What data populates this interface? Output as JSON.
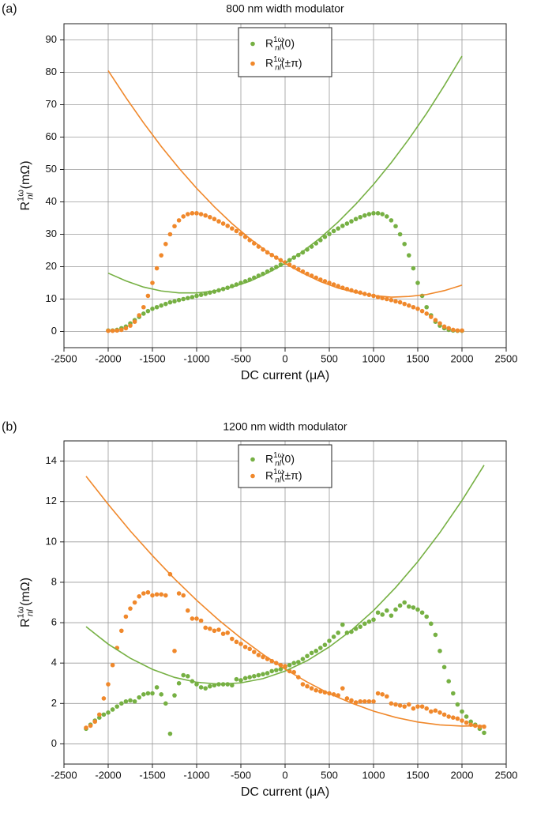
{
  "chart_data": [
    {
      "type": "scatter",
      "panel_label": "(a)",
      "title": "800 nm width modulator",
      "x_label": "DC current (μA)",
      "y_label": "R^{1ω}_{nl}  (mΩ)",
      "xlim": [
        -2500,
        2500
      ],
      "xticks": [
        -2500,
        -2000,
        -1500,
        -1000,
        -500,
        0,
        500,
        1000,
        1500,
        2000,
        2500
      ],
      "ylim": [
        -5,
        95
      ],
      "yticks": [
        0,
        10,
        20,
        30,
        40,
        50,
        60,
        70,
        80,
        90
      ],
      "grid": true,
      "legend": "upper center",
      "series": [
        {
          "name": "R^{1ω}_{nl}(0)",
          "color": "#76b043",
          "style": "scatter",
          "x": [
            -2000,
            -1950,
            -1900,
            -1850,
            -1800,
            -1750,
            -1700,
            -1650,
            -1600,
            -1550,
            -1500,
            -1450,
            -1400,
            -1350,
            -1300,
            -1250,
            -1200,
            -1150,
            -1100,
            -1050,
            -1000,
            -950,
            -900,
            -850,
            -800,
            -750,
            -700,
            -650,
            -600,
            -550,
            -500,
            -450,
            -400,
            -350,
            -300,
            -250,
            -200,
            -150,
            -100,
            -50,
            0,
            50,
            100,
            150,
            200,
            250,
            300,
            350,
            400,
            450,
            500,
            550,
            600,
            650,
            700,
            750,
            800,
            850,
            900,
            950,
            1000,
            1050,
            1100,
            1150,
            1200,
            1250,
            1300,
            1350,
            1400,
            1450,
            1500,
            1550,
            1600,
            1650,
            1700,
            1750,
            1800,
            1850,
            1900,
            1950,
            2000
          ],
          "values": [
            0.3,
            0.3,
            0.5,
            1,
            1.5,
            2.5,
            3.5,
            4.5,
            5.5,
            6.3,
            7,
            7.5,
            8,
            8.5,
            9,
            9.3,
            9.7,
            10,
            10.3,
            10.6,
            11,
            11.3,
            11.6,
            12,
            12.3,
            12.7,
            13.1,
            13.5,
            14,
            14.5,
            15,
            15.5,
            16,
            16.6,
            17.2,
            17.8,
            18.5,
            19.2,
            19.9,
            20.6,
            21.3,
            22,
            22.8,
            23.6,
            24.4,
            25.3,
            26.2,
            27.2,
            28.2,
            29.2,
            30.1,
            31,
            31.8,
            32.6,
            33.3,
            34,
            34.7,
            35.3,
            35.8,
            36.2,
            36.5,
            36.5,
            36.2,
            35.5,
            34.3,
            32.5,
            30,
            27,
            23.5,
            19.5,
            15,
            11,
            7.5,
            5,
            3,
            1.8,
            1,
            0.5,
            0.3,
            0.2,
            0.2
          ]
        },
        {
          "name": "R^{1ω}_{nl}(±π)",
          "color": "#f0882b",
          "style": "scatter",
          "x": [
            -2000,
            -1950,
            -1900,
            -1850,
            -1800,
            -1750,
            -1700,
            -1650,
            -1600,
            -1550,
            -1500,
            -1450,
            -1400,
            -1350,
            -1300,
            -1250,
            -1200,
            -1150,
            -1100,
            -1050,
            -1000,
            -950,
            -900,
            -850,
            -800,
            -750,
            -700,
            -650,
            -600,
            -550,
            -500,
            -450,
            -400,
            -350,
            -300,
            -250,
            -200,
            -150,
            -100,
            -50,
            0,
            50,
            100,
            150,
            200,
            250,
            300,
            350,
            400,
            450,
            500,
            550,
            600,
            650,
            700,
            750,
            800,
            850,
            900,
            950,
            1000,
            1050,
            1100,
            1150,
            1200,
            1250,
            1300,
            1350,
            1400,
            1450,
            1500,
            1550,
            1600,
            1650,
            1700,
            1750,
            1800,
            1850,
            1900,
            1950,
            2000
          ],
          "values": [
            0.2,
            0.2,
            0.3,
            0.5,
            1,
            1.8,
            3,
            5,
            7.5,
            11,
            15,
            19.5,
            23.5,
            27,
            30,
            32.5,
            34.3,
            35.5,
            36.2,
            36.5,
            36.5,
            36.2,
            35.8,
            35.3,
            34.7,
            34,
            33.3,
            32.6,
            31.8,
            31,
            30.1,
            29.2,
            28.2,
            27.2,
            26.2,
            25.3,
            24.4,
            23.6,
            22.8,
            22,
            21.3,
            20.6,
            19.9,
            19.2,
            18.5,
            17.8,
            17.2,
            16.6,
            16,
            15.5,
            15,
            14.5,
            14,
            13.5,
            13.1,
            12.7,
            12.3,
            12,
            11.6,
            11.3,
            11,
            10.6,
            10.3,
            10,
            9.7,
            9.3,
            9,
            8.5,
            8,
            7.5,
            7,
            6.3,
            5.5,
            4.5,
            3.5,
            2.5,
            1.5,
            1,
            0.5,
            0.3,
            0.3
          ]
        },
        {
          "color": "#76b043",
          "style": "line",
          "x": [
            -2000,
            -1800,
            -1600,
            -1400,
            -1200,
            -1000,
            -800,
            -600,
            -400,
            -200,
            0,
            200,
            400,
            600,
            800,
            1000,
            1200,
            1400,
            1600,
            1800,
            2000
          ],
          "values": [
            18.0,
            15.6,
            13.7,
            12.5,
            11.9,
            11.9,
            12.5,
            13.7,
            15.5,
            18.0,
            21,
            24.7,
            28.9,
            33.8,
            39.3,
            45.4,
            52.1,
            59.4,
            67.3,
            75.9,
            85.0
          ]
        },
        {
          "color": "#f0882b",
          "style": "line",
          "x": [
            -2000,
            -1800,
            -1600,
            -1400,
            -1200,
            -1000,
            -800,
            -600,
            -400,
            -200,
            0,
            200,
            400,
            600,
            800,
            1000,
            1200,
            1400,
            1600,
            1800,
            2000
          ],
          "values": [
            80.5,
            72.2,
            64.4,
            57.1,
            50.4,
            44.2,
            38.5,
            33.3,
            28.7,
            24.6,
            21,
            18.0,
            15.4,
            13.4,
            12.0,
            11.1,
            10.6,
            10.8,
            11.4,
            12.6,
            14.3
          ]
        }
      ]
    },
    {
      "type": "scatter",
      "panel_label": "(b)",
      "title": "1200 nm width modulator",
      "x_label": "DC current (μA)",
      "y_label": "R^{1ω}_{nl}  (mΩ)",
      "xlim": [
        -2500,
        2500
      ],
      "xticks": [
        -2500,
        -2000,
        -1500,
        -1000,
        -500,
        0,
        500,
        1000,
        1500,
        2000,
        2500
      ],
      "ylim": [
        -1,
        15
      ],
      "yticks": [
        0,
        2,
        4,
        6,
        8,
        10,
        12,
        14
      ],
      "grid": true,
      "legend": "upper center",
      "series": [
        {
          "name": "R^{1ω}_{nl}(0)",
          "color": "#76b043",
          "style": "scatter",
          "x": [
            -2250,
            -2200,
            -2150,
            -2100,
            -2050,
            -2000,
            -1950,
            -1900,
            -1850,
            -1800,
            -1750,
            -1700,
            -1650,
            -1600,
            -1550,
            -1500,
            -1450,
            -1400,
            -1350,
            -1300,
            -1250,
            -1200,
            -1150,
            -1100,
            -1050,
            -1000,
            -950,
            -900,
            -850,
            -800,
            -750,
            -700,
            -650,
            -600,
            -550,
            -500,
            -450,
            -400,
            -350,
            -300,
            -250,
            -200,
            -150,
            -100,
            -50,
            0,
            50,
            100,
            150,
            200,
            250,
            300,
            350,
            400,
            450,
            500,
            550,
            600,
            650,
            700,
            750,
            800,
            850,
            900,
            950,
            1000,
            1050,
            1100,
            1150,
            1200,
            1250,
            1300,
            1350,
            1400,
            1450,
            1500,
            1550,
            1600,
            1650,
            1700,
            1750,
            1800,
            1850,
            1900,
            1950,
            2000,
            2050,
            2100,
            2150,
            2200,
            2250
          ],
          "values": [
            0.75,
            0.95,
            1.15,
            1.3,
            1.45,
            1.55,
            1.7,
            1.85,
            2.0,
            2.1,
            2.15,
            2.1,
            2.3,
            2.45,
            2.5,
            2.5,
            2.8,
            2.45,
            2.0,
            0.5,
            2.4,
            3.0,
            3.4,
            3.35,
            3.1,
            2.95,
            2.8,
            2.75,
            2.85,
            2.9,
            2.95,
            2.95,
            2.95,
            2.9,
            3.2,
            3.15,
            3.25,
            3.3,
            3.35,
            3.4,
            3.45,
            3.5,
            3.6,
            3.65,
            3.7,
            3.8,
            3.9,
            4.0,
            4.05,
            4.2,
            4.35,
            4.5,
            4.6,
            4.75,
            4.9,
            5.1,
            5.3,
            5.5,
            5.9,
            5.5,
            5.55,
            5.7,
            5.8,
            5.95,
            6.05,
            6.15,
            6.5,
            6.4,
            6.6,
            6.35,
            6.65,
            6.85,
            7.0,
            6.8,
            6.75,
            6.65,
            6.5,
            6.3,
            5.95,
            5.4,
            4.6,
            3.8,
            3.1,
            2.5,
            1.95,
            1.6,
            1.35,
            1.1,
            0.95,
            0.75,
            0.55
          ]
        },
        {
          "name": "R^{1ω}_{nl}(±π)",
          "color": "#f0882b",
          "style": "scatter",
          "x": [
            -2250,
            -2200,
            -2150,
            -2100,
            -2050,
            -2000,
            -1950,
            -1900,
            -1850,
            -1800,
            -1750,
            -1700,
            -1650,
            -1600,
            -1550,
            -1500,
            -1450,
            -1400,
            -1350,
            -1300,
            -1250,
            -1200,
            -1150,
            -1100,
            -1050,
            -1000,
            -950,
            -900,
            -850,
            -800,
            -750,
            -700,
            -650,
            -600,
            -550,
            -500,
            -450,
            -400,
            -350,
            -300,
            -250,
            -200,
            -150,
            -100,
            -50,
            0,
            50,
            100,
            150,
            200,
            250,
            300,
            350,
            400,
            450,
            500,
            550,
            600,
            650,
            700,
            750,
            800,
            850,
            900,
            950,
            1000,
            1050,
            1100,
            1150,
            1200,
            1250,
            1300,
            1350,
            1400,
            1450,
            1500,
            1550,
            1600,
            1650,
            1700,
            1750,
            1800,
            1850,
            1900,
            1950,
            2000,
            2050,
            2100,
            2150,
            2200,
            2250
          ],
          "values": [
            0.8,
            0.9,
            1.1,
            1.45,
            2.25,
            2.95,
            3.9,
            4.75,
            5.6,
            6.3,
            6.7,
            7.0,
            7.3,
            7.45,
            7.5,
            7.35,
            7.4,
            7.4,
            7.35,
            8.4,
            4.6,
            7.45,
            7.35,
            6.6,
            6.2,
            6.2,
            6.1,
            5.75,
            5.7,
            5.6,
            5.65,
            5.45,
            5.5,
            5.2,
            5.05,
            4.95,
            4.8,
            4.7,
            4.55,
            4.4,
            4.3,
            4.2,
            4.1,
            4.0,
            3.9,
            3.85,
            3.6,
            3.55,
            3.3,
            2.95,
            2.85,
            2.75,
            2.65,
            2.6,
            2.55,
            2.5,
            2.45,
            2.4,
            2.75,
            2.25,
            2.15,
            2.05,
            2.1,
            2.1,
            2.1,
            2.1,
            2.5,
            2.45,
            2.35,
            2.0,
            1.95,
            1.9,
            1.85,
            1.95,
            1.75,
            1.85,
            1.85,
            1.75,
            1.6,
            1.65,
            1.55,
            1.45,
            1.35,
            1.3,
            1.25,
            1.15,
            1.05,
            0.95,
            0.9,
            0.85,
            0.85
          ]
        },
        {
          "color": "#76b043",
          "style": "line",
          "x": [
            -2250,
            -2000,
            -1750,
            -1500,
            -1250,
            -1000,
            -750,
            -500,
            -250,
            0,
            250,
            500,
            750,
            1000,
            1250,
            1500,
            1750,
            2000,
            2250
          ],
          "values": [
            5.8,
            4.94,
            4.24,
            3.69,
            3.29,
            3.05,
            2.96,
            3.02,
            3.23,
            3.6,
            4.12,
            4.8,
            5.62,
            6.6,
            7.74,
            9.02,
            10.46,
            12.05,
            13.8
          ]
        },
        {
          "color": "#f0882b",
          "style": "line",
          "x": [
            -2250,
            -2000,
            -1750,
            -1500,
            -1250,
            -1000,
            -750,
            -500,
            -250,
            0,
            250,
            500,
            750,
            1000,
            1250,
            1500,
            1750,
            2000,
            2250
          ],
          "values": [
            13.25,
            11.86,
            10.54,
            9.32,
            8.17,
            7.11,
            6.13,
            5.24,
            4.43,
            3.7,
            3.06,
            2.49,
            2.02,
            1.62,
            1.31,
            1.08,
            0.94,
            0.88,
            0.9
          ]
        }
      ]
    }
  ]
}
